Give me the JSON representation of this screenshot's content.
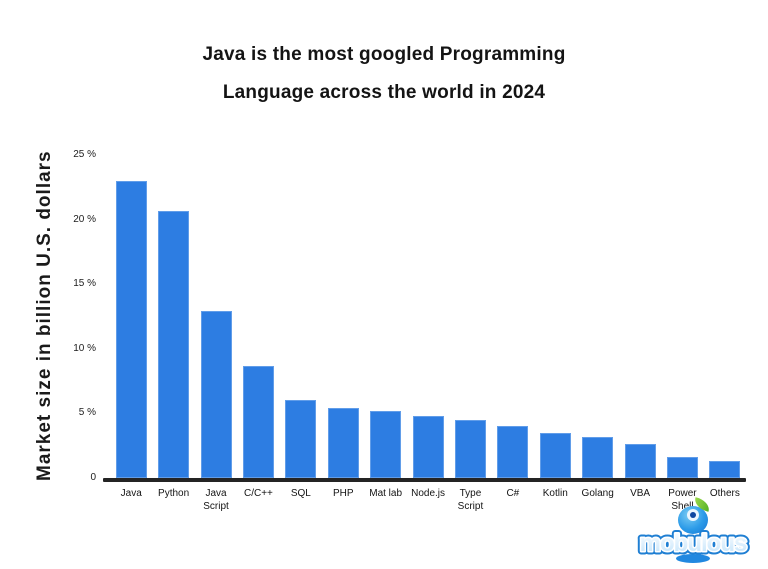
{
  "title": {
    "line1": "Java is the most googled Programming",
    "line2": "Language across the world in 2024"
  },
  "chart_data": {
    "type": "bar",
    "title": "Java is the most googled Programming Language across the world in 2024",
    "xlabel": "",
    "ylabel": "Market size in billion U.S. dollars",
    "categories": [
      "Java",
      "Python",
      "Java\nScript",
      "C/C++",
      "SQL",
      "PHP",
      "Mat lab",
      "Node.js",
      "Type\nScript",
      "C#",
      "Kotlin",
      "Golang",
      "VBA",
      "Power\nShell",
      "Others"
    ],
    "values": [
      23,
      20.7,
      12.9,
      8.7,
      6,
      5.4,
      5.2,
      4.8,
      4.5,
      4,
      3.5,
      3.2,
      2.6,
      1.6,
      1.3
    ],
    "ylim": [
      0,
      25
    ],
    "yticks": [
      {
        "value": 0,
        "label": "0"
      },
      {
        "value": 5,
        "label": "5 %"
      },
      {
        "value": 10,
        "label": "10 %"
      },
      {
        "value": 15,
        "label": "15 %"
      },
      {
        "value": 20,
        "label": "20 %"
      },
      {
        "value": 25,
        "label": "25 %"
      }
    ],
    "grid": false,
    "legend": null,
    "bar_color": "#2D7DE2",
    "axis_color": "#242424"
  },
  "branding": {
    "logo_text": "mobulous",
    "logo_blue": "#2b87d8",
    "logo_leaf_green": "#53b125"
  }
}
